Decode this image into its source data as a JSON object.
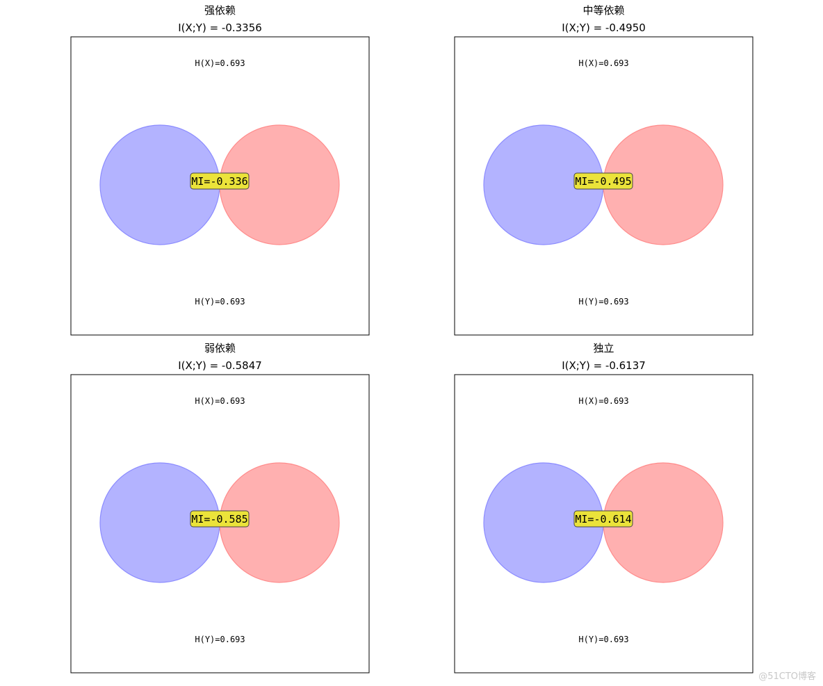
{
  "colors": {
    "circle_x_fill": "#b3b3ff",
    "circle_x_stroke": "#8c8cff",
    "circle_y_fill": "#ffb0b0",
    "circle_y_stroke": "#ff8c8c",
    "label_box_fill": "#ebe33a",
    "label_box_stroke": "#444444"
  },
  "panels": [
    {
      "title": "强依赖",
      "subtitle": "I(X;Y) = -0.3356",
      "hx": "H(X)=0.693",
      "hy": "H(Y)=0.693",
      "mi": "MI=-0.336"
    },
    {
      "title": "中等依赖",
      "subtitle": "I(X;Y) = -0.4950",
      "hx": "H(X)=0.693",
      "hy": "H(Y)=0.693",
      "mi": "MI=-0.495"
    },
    {
      "title": "弱依赖",
      "subtitle": "I(X;Y) = -0.5847",
      "hx": "H(X)=0.693",
      "hy": "H(Y)=0.693",
      "mi": "MI=-0.585"
    },
    {
      "title": "独立",
      "subtitle": "I(X;Y) = -0.6137",
      "hx": "H(X)=0.693",
      "hy": "H(Y)=0.693",
      "mi": "MI=-0.614"
    }
  ],
  "watermark": "@51CTO博客"
}
